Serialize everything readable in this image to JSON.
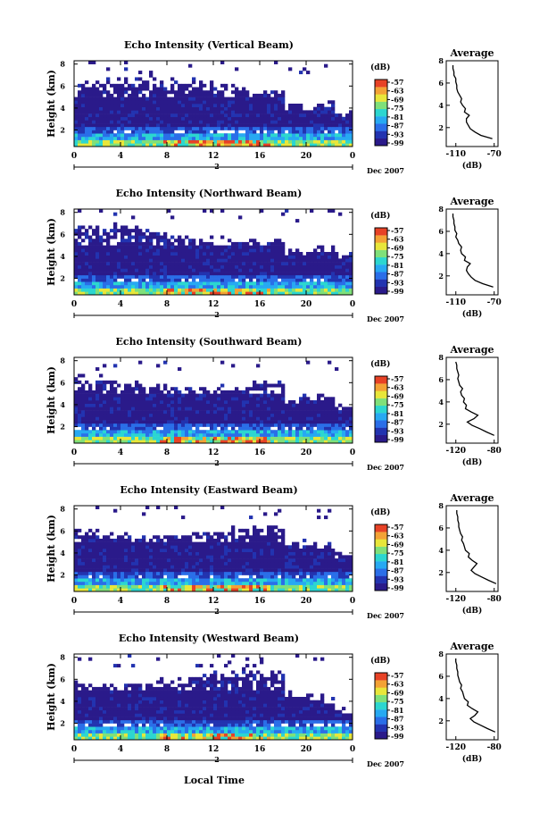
{
  "chart_data": {
    "type": "heatmap",
    "xlabel": "Local Time",
    "date_label": "Dec 2007",
    "day_label": "2",
    "x_ticks": [
      "0",
      "4",
      "8",
      "12",
      "16",
      "20",
      "0"
    ],
    "colorbar": {
      "unit_label": "(dB)",
      "tick_labels": [
        "-57",
        "-63",
        "-69",
        "-75",
        "-81",
        "-87",
        "-93",
        "-99"
      ],
      "colors": [
        "#2a1a8a",
        "#2233b0",
        "#2a6ee8",
        "#27a9f2",
        "#2cd6d0",
        "#7fe07a",
        "#e8e63a",
        "#f3a235",
        "#e74226"
      ]
    },
    "ylabel": "Height (km)",
    "y_ticks": [
      "2",
      "4",
      "6",
      "8"
    ],
    "profile_title": "Average",
    "profile_xlabel": "(dB)",
    "panels": [
      {
        "title": "Echo Intensity (Vertical Beam)",
        "profile_xticks": [
          "-110",
          "-70"
        ],
        "profile": {
          "heights": [
            1.0,
            1.3,
            1.6,
            1.9,
            2.2,
            2.5,
            2.8,
            3.1,
            3.4,
            3.7,
            4.0,
            4.3,
            4.6,
            4.9,
            5.2,
            5.5,
            5.8,
            6.1,
            6.4,
            6.7,
            7.0,
            7.3,
            7.6
          ],
          "values": [
            -72,
            -84,
            -90,
            -95,
            -97,
            -99,
            -99,
            -96,
            -101,
            -100,
            -103,
            -105,
            -104,
            -106,
            -108,
            -109,
            -109,
            -110,
            -110,
            -112,
            -112,
            -113,
            -113
          ]
        }
      },
      {
        "title": "Echo Intensity (Northward Beam)",
        "profile_xticks": [
          "-110",
          "-70"
        ],
        "profile": {
          "heights": [
            1.0,
            1.3,
            1.6,
            1.9,
            2.2,
            2.5,
            2.8,
            3.1,
            3.4,
            3.7,
            4.0,
            4.3,
            4.6,
            4.9,
            5.2,
            5.5,
            5.8,
            6.1,
            6.4,
            6.7,
            7.0,
            7.3,
            7.6
          ],
          "values": [
            -71,
            -82,
            -90,
            -94,
            -97,
            -99,
            -98,
            -95,
            -101,
            -100,
            -104,
            -105,
            -104,
            -107,
            -108,
            -110,
            -109,
            -111,
            -111,
            -112,
            -112,
            -113,
            -113
          ]
        }
      },
      {
        "title": "Echo Intensity (Southward Beam)",
        "profile_xticks": [
          "-120",
          "-80"
        ],
        "profile": {
          "heights": [
            1.0,
            1.3,
            1.6,
            1.9,
            2.2,
            2.5,
            2.8,
            3.1,
            3.4,
            3.7,
            4.0,
            4.3,
            4.6,
            4.9,
            5.2,
            5.5,
            5.8,
            6.1,
            6.4,
            6.7,
            7.0,
            7.3,
            7.6
          ],
          "values": [
            -80,
            -88,
            -95,
            -103,
            -108,
            -101,
            -97,
            -104,
            -110,
            -109,
            -112,
            -111,
            -114,
            -115,
            -113,
            -116,
            -117,
            -118,
            -117,
            -118,
            -119,
            -119,
            -120
          ]
        }
      },
      {
        "title": "Echo Intensity (Eastward Beam)",
        "profile_xticks": [
          "-120",
          "-80"
        ],
        "profile": {
          "heights": [
            1.0,
            1.3,
            1.6,
            1.9,
            2.2,
            2.5,
            2.8,
            3.1,
            3.4,
            3.7,
            4.0,
            4.3,
            4.6,
            4.9,
            5.2,
            5.5,
            5.8,
            6.1,
            6.4,
            6.7,
            7.0,
            7.3,
            7.6
          ],
          "values": [
            -78,
            -86,
            -93,
            -100,
            -104,
            -101,
            -98,
            -103,
            -107,
            -106,
            -110,
            -111,
            -112,
            -114,
            -113,
            -115,
            -116,
            -117,
            -117,
            -118,
            -118,
            -119,
            -119
          ]
        }
      },
      {
        "title": "Echo Intensity (Westward Beam)",
        "profile_xticks": [
          "-120",
          "-80"
        ],
        "profile": {
          "heights": [
            1.0,
            1.3,
            1.6,
            1.9,
            2.2,
            2.5,
            2.8,
            3.1,
            3.4,
            3.7,
            4.0,
            4.3,
            4.6,
            4.9,
            5.2,
            5.5,
            5.8,
            6.1,
            6.4,
            6.7,
            7.0,
            7.3,
            7.6
          ],
          "values": [
            -79,
            -87,
            -94,
            -101,
            -105,
            -100,
            -97,
            -103,
            -108,
            -107,
            -111,
            -112,
            -113,
            -115,
            -114,
            -116,
            -117,
            -118,
            -118,
            -119,
            -119,
            -120,
            -120
          ]
        }
      }
    ]
  }
}
